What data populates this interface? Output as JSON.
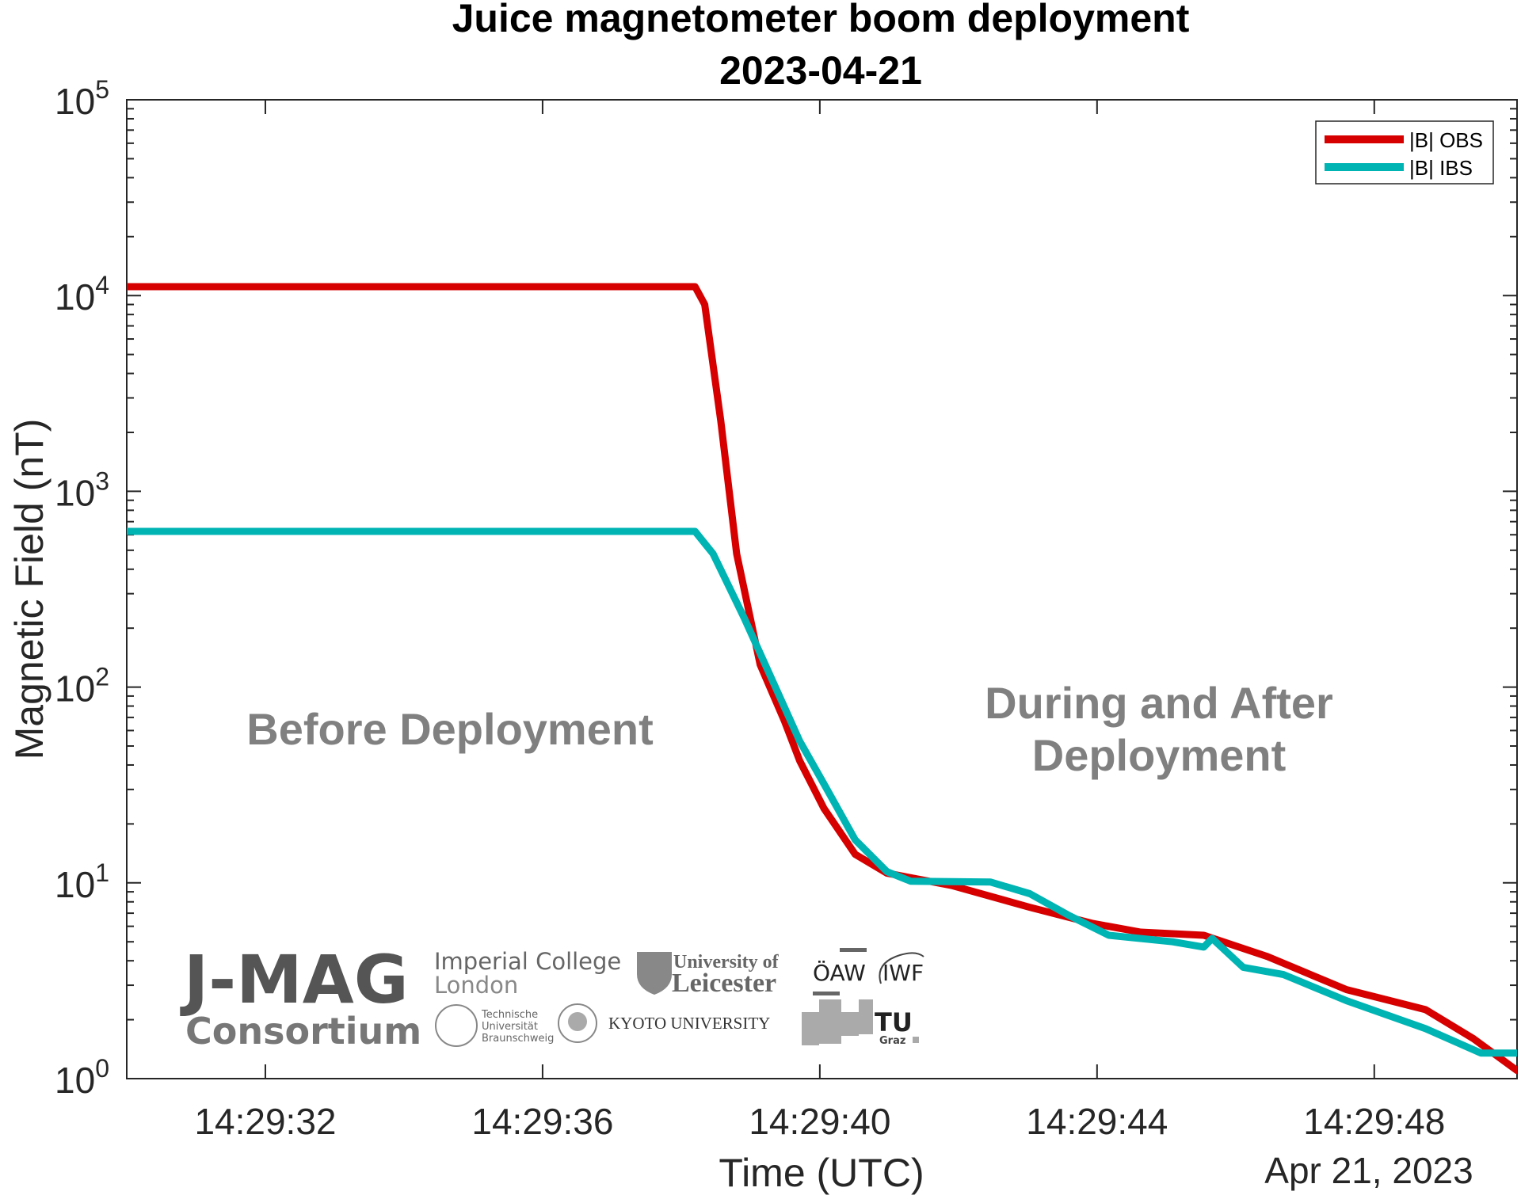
{
  "figure": {
    "title_line1": "Juice magnetometer boom deployment",
    "title_line2": "2023-04-21",
    "xlabel": "Time (UTC)",
    "ylabel": "Magnetic Field (nT)",
    "date_label": "Apr 21, 2023",
    "annotation_before": "Before Deployment",
    "annotation_after_line1": "During and After",
    "annotation_after_line2": "Deployment",
    "legend": [
      {
        "label": "|B| OBS",
        "color": "#d60000"
      },
      {
        "label": "|B| IBS",
        "color": "#00b4b4"
      }
    ],
    "x_ticks": [
      "14:29:32",
      "14:29:36",
      "14:29:40",
      "14:29:44",
      "14:29:48"
    ],
    "y_ticks": [
      {
        "base": "10",
        "exp": "0"
      },
      {
        "base": "10",
        "exp": "1"
      },
      {
        "base": "10",
        "exp": "2"
      },
      {
        "base": "10",
        "exp": "3"
      },
      {
        "base": "10",
        "exp": "4"
      },
      {
        "base": "10",
        "exp": "5"
      }
    ],
    "logos": {
      "jmag": "J-MAG",
      "consortium": "Consortium",
      "imperial_line1": "Imperial College",
      "imperial_line2": "London",
      "leicester_line1": "University of",
      "leicester_line2": "Leicester",
      "oeaw": "ÖAW",
      "iwf": "IWF",
      "tubs_line1": "Technische",
      "tubs_line2": "Universität",
      "tubs_line3": "Braunschweig",
      "kyoto": "KYOTO UNIVERSITY",
      "tugraz_line1": "TU",
      "tugraz_line2": "Graz"
    }
  },
  "chart_data": {
    "type": "line",
    "title": "Juice magnetometer boom deployment 2023-04-21",
    "xlabel": "Time (UTC)",
    "ylabel": "Magnetic Field (nT)",
    "x_unit": "seconds after 14:29:00 UTC, Apr 21, 2023",
    "xlim": [
      30.0,
      50.06
    ],
    "ylim": [
      1,
      100000
    ],
    "yscale": "log",
    "grid": false,
    "legend_position": "upper right",
    "x_tick_labels": [
      "14:29:32",
      "14:29:36",
      "14:29:40",
      "14:29:44",
      "14:29:48"
    ],
    "x_tick_values": [
      32,
      36,
      40,
      44,
      48
    ],
    "y_tick_labels": [
      "10^0",
      "10^1",
      "10^2",
      "10^3",
      "10^4",
      "10^5"
    ],
    "annotations": [
      "Before Deployment",
      "During and After Deployment"
    ],
    "series": [
      {
        "name": "|B| OBS",
        "color": "#d60000",
        "x": [
          30.0,
          32.0,
          34.0,
          36.0,
          38.0,
          38.2,
          38.34,
          38.57,
          38.8,
          39.14,
          39.49,
          39.71,
          40.06,
          40.51,
          40.97,
          41.9,
          43.03,
          43.94,
          44.63,
          45.54,
          46.46,
          47.6,
          48.74,
          49.43,
          50.06
        ],
        "values": [
          11100,
          11100,
          11100,
          11100,
          11100,
          11100,
          9000,
          2300,
          480,
          130,
          67,
          42,
          24,
          14,
          11.2,
          9.7,
          7.5,
          6.2,
          5.6,
          5.4,
          4.2,
          2.85,
          2.25,
          1.6,
          1.1
        ]
      },
      {
        "name": "|B| IBS",
        "color": "#00b4b4",
        "x": [
          30.0,
          32.0,
          34.0,
          36.0,
          38.0,
          38.2,
          38.46,
          38.91,
          39.37,
          39.71,
          40.06,
          40.51,
          40.97,
          41.31,
          42.46,
          43.03,
          43.6,
          44.17,
          45.09,
          45.54,
          45.66,
          46.11,
          46.69,
          47.6,
          48.74,
          49.54,
          50.06
        ],
        "values": [
          624,
          624,
          624,
          624,
          624,
          624,
          480,
          225,
          98,
          53,
          32,
          16.6,
          11.4,
          10.2,
          10.1,
          8.8,
          6.8,
          5.4,
          5.0,
          4.7,
          5.2,
          3.7,
          3.4,
          2.5,
          1.8,
          1.35,
          1.35
        ]
      }
    ]
  }
}
